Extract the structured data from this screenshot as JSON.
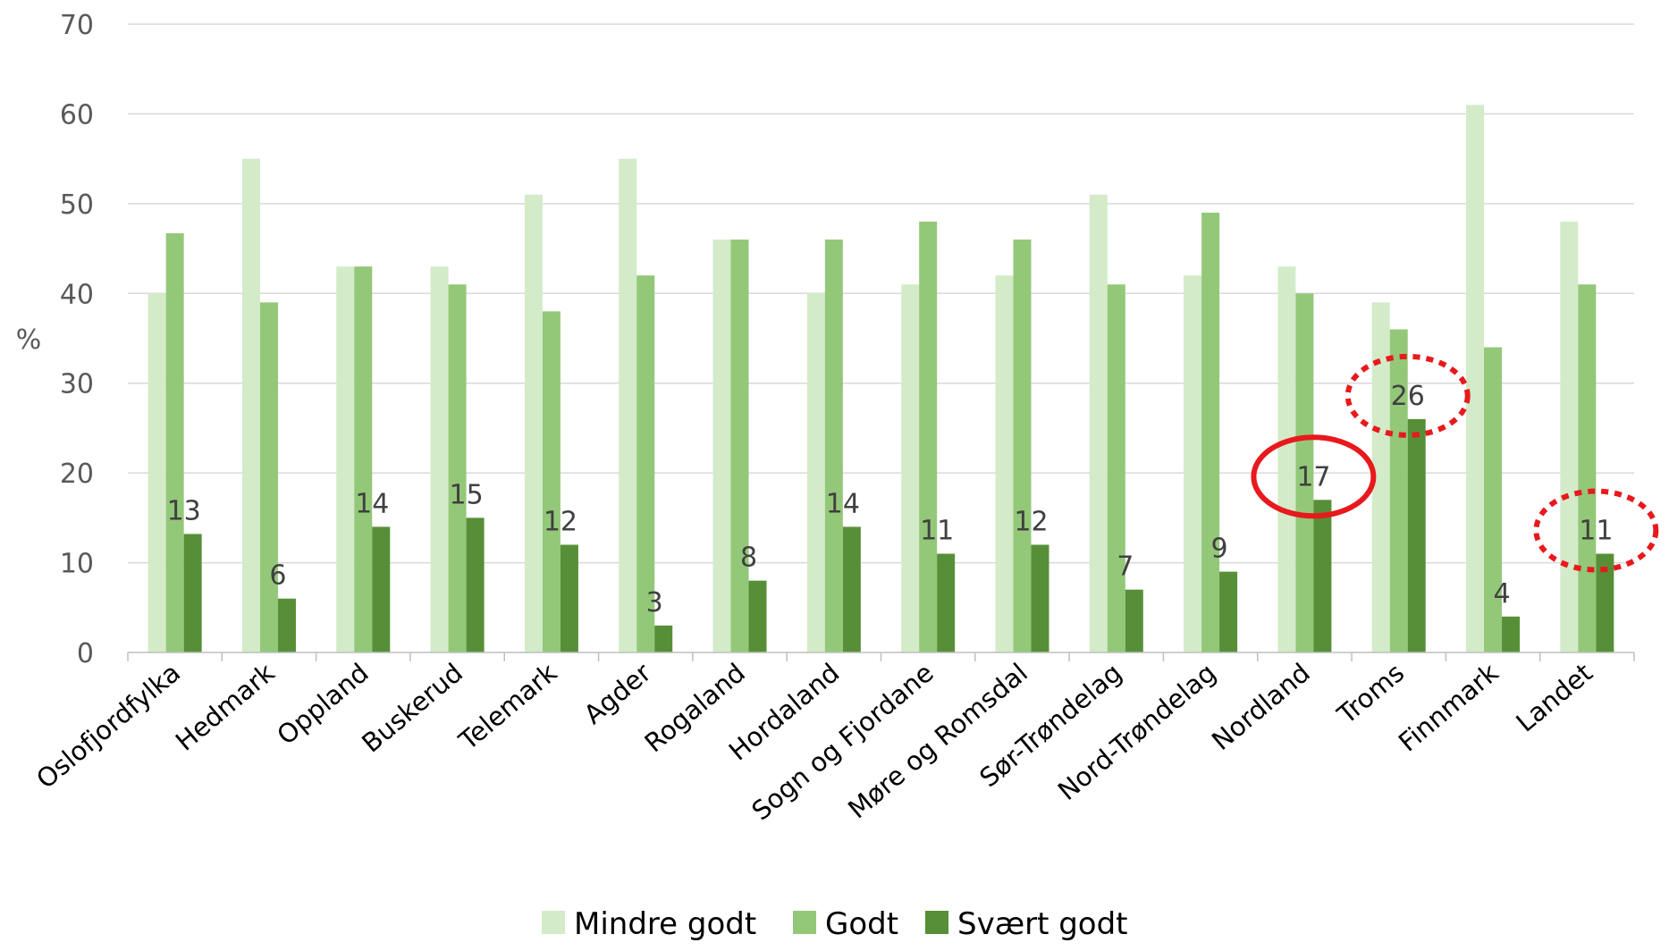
{
  "chart_data": {
    "type": "bar",
    "ylabel": "%",
    "ylim": [
      0,
      70
    ],
    "yticks": [
      0,
      10,
      20,
      30,
      40,
      50,
      60,
      70
    ],
    "grid": true,
    "legend_position": "bottom",
    "categories": [
      "Oslofjordfylka",
      "Hedmark",
      "Oppland",
      "Buskerud",
      "Telemark",
      "Agder",
      "Rogaland",
      "Hordaland",
      "Sogn og Fjordane",
      "Møre og Romsdal",
      "Sør-Trøndelag",
      "Nord-Trøndelag",
      "Nordland",
      "Troms",
      "Finnmark",
      "Landet"
    ],
    "series": [
      {
        "name": "Mindre godt",
        "color": "#d3ebc9",
        "values": [
          40,
          55,
          43,
          43,
          51,
          55,
          46,
          40,
          41,
          42,
          51,
          42,
          43,
          39,
          61,
          48
        ]
      },
      {
        "name": "Godt",
        "color": "#93c878",
        "values": [
          46.7,
          39,
          43,
          41,
          38,
          42,
          46,
          46,
          48,
          46,
          41,
          49,
          40,
          36,
          34,
          41
        ]
      },
      {
        "name": "Svært godt",
        "color": "#568f37",
        "values": [
          13.2,
          6,
          14,
          15,
          12,
          3,
          8,
          14,
          11,
          12,
          7,
          9,
          17,
          26,
          4,
          11
        ]
      }
    ],
    "data_labels": [
      "13",
      "6",
      "14",
      "15",
      "12",
      "3",
      "8",
      "14",
      "11",
      "12",
      "7",
      "9",
      "17",
      "26",
      "4",
      "11"
    ],
    "highlights": [
      {
        "category": "Nordland",
        "style": "solid",
        "color": "#e8191c"
      },
      {
        "category": "Troms",
        "style": "dotted",
        "color": "#e8191c"
      },
      {
        "category": "Landet",
        "style": "dotted",
        "color": "#e8191c"
      }
    ]
  }
}
